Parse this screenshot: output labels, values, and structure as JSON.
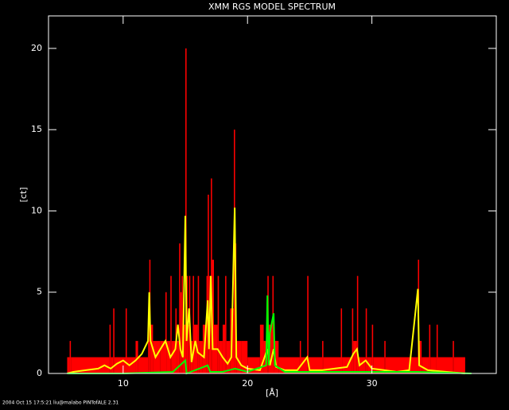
{
  "chart_data": {
    "type": "spectrum",
    "title": "XMM RGS MODEL SPECTRUM",
    "xlabel": "[Å]",
    "ylabel": "[ct]",
    "footer": "2004 Oct 15 17:5:21 liu@malabo PINTofALE 2.31",
    "xlim": [
      4,
      40
    ],
    "ylim": [
      0,
      22
    ],
    "xticks": [
      10,
      20,
      30
    ],
    "yticks": [
      0,
      5,
      10,
      15,
      20
    ],
    "series": [
      {
        "color": "#ff0000",
        "style": "histogram",
        "bins": [
          5.5,
          5.7,
          5.8,
          8.9,
          9.0,
          9.2,
          9.3,
          10.2,
          10.3,
          11.0,
          11.2,
          12.0,
          12.1,
          12.2,
          12.4,
          13.0,
          13.4,
          13.5,
          13.8,
          13.9,
          14.2,
          14.3,
          14.5,
          14.6,
          14.7,
          14.8,
          15.0,
          15.1,
          15.2,
          15.3,
          15.4,
          15.6,
          15.7,
          16.0,
          16.1,
          16.4,
          16.7,
          16.8,
          16.9,
          17.05,
          17.15,
          17.3,
          17.6,
          17.7,
          18.0,
          18.2,
          18.3,
          18.6,
          18.9,
          19.0,
          19.1,
          19.5,
          20.0,
          21.0,
          21.3,
          21.6,
          21.7,
          22.0,
          22.1,
          22.5,
          24.2,
          24.3,
          24.8,
          24.9,
          26.0,
          26.1,
          27.5,
          27.6,
          28.4,
          28.5,
          28.8,
          28.9,
          29.5,
          29.6,
          30.0,
          30.1,
          31.0,
          31.1,
          33.7,
          33.8,
          34.0,
          34.6,
          34.7,
          35.2,
          35.3,
          36.5,
          36.6,
          37.5
        ],
        "values": [
          1,
          2,
          1,
          3,
          1,
          4,
          1,
          4,
          1,
          2,
          1,
          3,
          7,
          3,
          2,
          2,
          5,
          2,
          6,
          2,
          4,
          2,
          8,
          5,
          6,
          3,
          20,
          6,
          3,
          6,
          2,
          6,
          3,
          6,
          2,
          3,
          6,
          11,
          6,
          12,
          7,
          3,
          6,
          2,
          3,
          6,
          2,
          4,
          15,
          8,
          2,
          2,
          1,
          3,
          2,
          6,
          3,
          6,
          2,
          1,
          2,
          1,
          6,
          1,
          2,
          1,
          4,
          1,
          4,
          2,
          6,
          1,
          4,
          1,
          3,
          1,
          2,
          1,
          7,
          2,
          1,
          3,
          1,
          3,
          1,
          2,
          1
        ]
      },
      {
        "color": "#ffff00",
        "style": "line",
        "x": [
          5.5,
          6,
          7,
          8,
          8.5,
          9,
          9.5,
          10,
          10.5,
          11,
          11.5,
          12,
          12.1,
          12.2,
          12.6,
          13,
          13.4,
          13.8,
          14.2,
          14.4,
          14.6,
          14.8,
          15.0,
          15.1,
          15.3,
          15.5,
          15.8,
          16.0,
          16.5,
          16.8,
          16.9,
          17.05,
          17.2,
          17.6,
          18.0,
          18.4,
          18.7,
          18.97,
          19.1,
          19.5,
          20,
          21,
          21.6,
          21.8,
          22.1,
          22.3,
          23,
          24,
          24.8,
          25,
          26,
          27,
          28,
          28.5,
          28.8,
          29,
          29.5,
          30,
          31,
          32,
          33,
          33.7,
          33.8,
          34.5,
          36,
          37.5
        ],
        "values": [
          0,
          0.1,
          0.2,
          0.3,
          0.5,
          0.3,
          0.6,
          0.8,
          0.5,
          0.8,
          1.2,
          2,
          5,
          2,
          1,
          1.5,
          2,
          1,
          1.5,
          3,
          1.5,
          1,
          9.7,
          2,
          4,
          0.7,
          2,
          1.3,
          1,
          4.5,
          1.5,
          6,
          1.5,
          1.5,
          1,
          0.6,
          1,
          10.2,
          1,
          0.5,
          0.3,
          0.2,
          1.5,
          0.5,
          1.5,
          0.4,
          0.2,
          0.2,
          1,
          0.2,
          0.2,
          0.3,
          0.4,
          1.2,
          1.5,
          0.5,
          0.8,
          0.3,
          0.2,
          0.1,
          0.2,
          5.2,
          0.5,
          0.2,
          0.1,
          0
        ]
      },
      {
        "color": "#00ff00",
        "style": "line",
        "x": [
          5.5,
          10,
          14,
          15,
          15.1,
          16.8,
          17,
          18,
          19,
          20,
          21.5,
          21.6,
          21.7,
          21.8,
          22.1,
          22.2,
          23,
          25,
          33.7,
          38
        ],
        "values": [
          0,
          0,
          0.1,
          0.8,
          0,
          0.5,
          0.1,
          0.1,
          0.3,
          0.1,
          0.5,
          4.8,
          0.5,
          2.5,
          3.7,
          0.5,
          0.1,
          0.1,
          0.1,
          0
        ]
      }
    ]
  }
}
